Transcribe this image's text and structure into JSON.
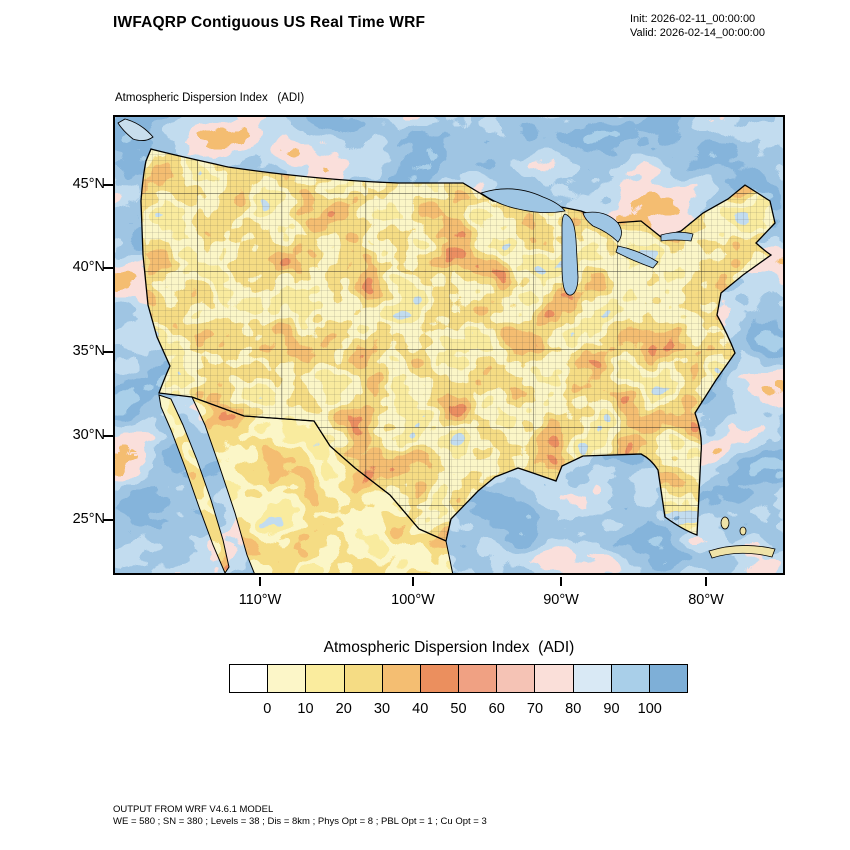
{
  "header": {
    "title": "IWFAQRP Contiguous US Real Time WRF",
    "init_line": "Init: 2026-02-11_00:00:00",
    "valid_line": "Valid: 2026-02-14_00:00:00"
  },
  "map": {
    "subtitle": "Atmospheric Dispersion Index   (ADI)",
    "lat_labels": [
      "45°N",
      "40°N",
      "35°N",
      "30°N",
      "25°N"
    ],
    "lon_labels": [
      "110°W",
      "100°W",
      "90°W",
      "80°W"
    ]
  },
  "colorbar": {
    "title": "Atmospheric Dispersion Index  (ADI)",
    "tick_labels": [
      "0",
      "10",
      "20",
      "30",
      "40",
      "50",
      "60",
      "70",
      "80",
      "90",
      "100"
    ],
    "colors": [
      "#FFFFFF",
      "#FCF6C8",
      "#FAEC9E",
      "#F5DC84",
      "#F4BE72",
      "#EB8F5E",
      "#F0A183",
      "#F5C3B5",
      "#FADFD9",
      "#D9E9F5",
      "#A9CFE9",
      "#7EAFD7"
    ]
  },
  "footer": {
    "line1": "OUTPUT FROM WRF V4.6.1 MODEL",
    "line2": "WE = 580 ; SN = 380 ; Levels = 38 ; Dis = 8km ; Phys Opt = 8 ; PBL Opt = 1 ; Cu Opt = 3"
  }
}
